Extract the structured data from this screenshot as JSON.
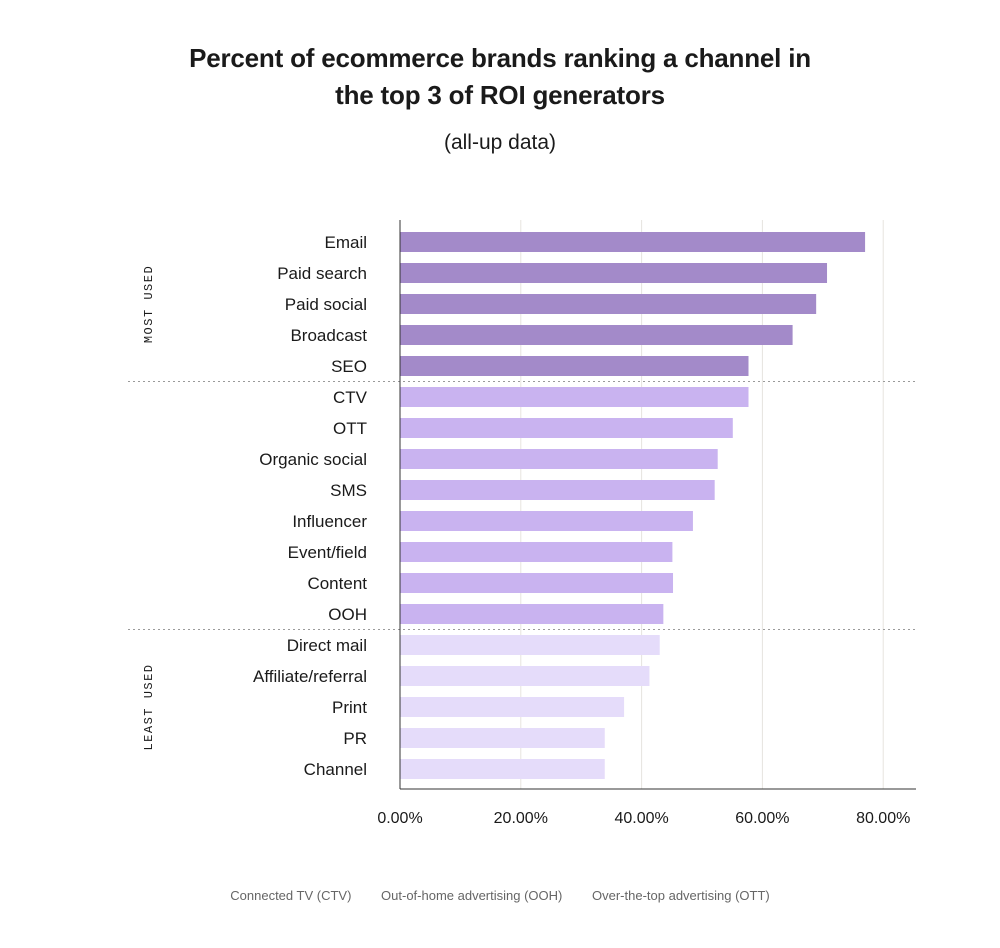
{
  "chart_data": {
    "type": "bar",
    "orientation": "horizontal",
    "title": "Percent of ecommerce brands ranking a channel in the top 3 of ROI generators",
    "title_lines": [
      "Percent of ecommerce brands ranking a channel in",
      "the top 3 of ROI generators"
    ],
    "subtitle": "(all-up data)",
    "xlim": [
      0,
      85
    ],
    "xticks": [
      0,
      20,
      40,
      60,
      80
    ],
    "xtick_labels": [
      "0.00%",
      "20.00%",
      "40.00%",
      "60.00%",
      "80.00%"
    ],
    "grid": "vertical",
    "categories": [
      "Email",
      "Paid search",
      "Paid social",
      "Broadcast",
      "SEO",
      "CTV",
      "OTT",
      "Organic social",
      "SMS",
      "Influencer",
      "Event/field",
      "Content",
      "OOH",
      "Direct mail",
      "Affiliate/referral",
      "Print",
      "PR",
      "Channel"
    ],
    "values": [
      77.0,
      70.7,
      68.9,
      65.0,
      57.7,
      57.7,
      55.1,
      52.6,
      52.1,
      48.5,
      45.1,
      45.2,
      43.6,
      43.0,
      41.3,
      37.1,
      33.9,
      33.9
    ],
    "groups": [
      {
        "label": "MOST USED",
        "first": 0,
        "last": 4,
        "color": "#a38ac9"
      },
      {
        "label": "",
        "first": 5,
        "last": 12,
        "color": "#c9b3f0"
      },
      {
        "label": "LEAST USED",
        "first": 13,
        "last": 17,
        "color": "#e5dcfa"
      }
    ],
    "footnotes": [
      "Connected TV (CTV)",
      "Out-of-home advertising (OOH)",
      "Over-the-top advertising (OTT)"
    ]
  }
}
